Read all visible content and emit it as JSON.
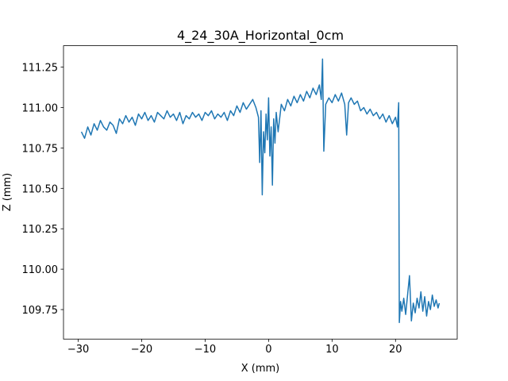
{
  "chart_data": {
    "type": "line",
    "title": "4_24_30A_Horizontal_0cm",
    "x_label": "X (mm)",
    "y_label": "Z (mm)",
    "x": [
      -29.5,
      -29,
      -28.5,
      -28,
      -27.5,
      -27,
      -26.5,
      -26,
      -25.5,
      -25,
      -24.5,
      -24,
      -23.5,
      -23,
      -22.5,
      -22,
      -21.5,
      -21,
      -20.5,
      -20,
      -19.5,
      -19,
      -18.5,
      -18,
      -17.5,
      -17,
      -16.5,
      -16,
      -15.5,
      -15,
      -14.5,
      -14,
      -13.5,
      -13,
      -12.5,
      -12,
      -11.5,
      -11,
      -10.5,
      -10,
      -9.5,
      -9,
      -8.5,
      -8,
      -7.5,
      -7,
      -6.5,
      -6,
      -5.5,
      -5,
      -4.5,
      -4,
      -3.5,
      -3,
      -2.5,
      -2,
      -1.6,
      -1.4,
      -1.2,
      -1,
      -0.8,
      -0.6,
      -0.4,
      -0.2,
      0,
      0.2,
      0.4,
      0.6,
      0.8,
      1,
      1.2,
      1.5,
      2,
      2.5,
      3,
      3.5,
      4,
      4.5,
      5,
      5.5,
      6,
      6.5,
      7,
      7.5,
      8,
      8.3,
      8.5,
      8.7,
      9,
      9.5,
      10,
      10.5,
      11,
      11.5,
      12,
      12.3,
      12.6,
      13,
      13.5,
      14,
      14.5,
      15,
      15.5,
      16,
      16.5,
      17,
      17.5,
      18,
      18.5,
      19,
      19.5,
      20,
      20.3,
      20.5,
      20.6,
      20.8,
      21,
      21.3,
      21.6,
      21.9,
      22.2,
      22.5,
      22.8,
      23.1,
      23.4,
      23.7,
      24,
      24.3,
      24.6,
      24.9,
      25.2,
      25.5,
      25.8,
      26.1,
      26.4,
      26.7,
      26.9
    ],
    "series": [
      {
        "color": "#1f77b4",
        "values": [
          110.85,
          110.81,
          110.88,
          110.83,
          110.9,
          110.86,
          110.92,
          110.88,
          110.86,
          110.91,
          110.89,
          110.84,
          110.93,
          110.9,
          110.95,
          110.91,
          110.94,
          110.89,
          110.96,
          110.93,
          110.97,
          110.92,
          110.95,
          110.91,
          110.97,
          110.95,
          110.93,
          110.98,
          110.94,
          110.96,
          110.92,
          110.97,
          110.9,
          110.95,
          110.93,
          110.97,
          110.94,
          110.96,
          110.92,
          110.97,
          110.95,
          110.98,
          110.93,
          110.96,
          110.94,
          110.97,
          110.92,
          110.98,
          110.95,
          111.01,
          110.97,
          111.03,
          110.99,
          111.02,
          111.05,
          111.0,
          110.94,
          110.66,
          110.98,
          110.46,
          110.85,
          110.72,
          110.96,
          110.8,
          111.06,
          110.7,
          110.88,
          110.52,
          110.93,
          110.78,
          110.97,
          110.85,
          111.02,
          110.98,
          111.05,
          111.01,
          111.07,
          111.03,
          111.08,
          111.04,
          111.1,
          111.06,
          111.12,
          111.08,
          111.14,
          111.05,
          111.3,
          110.73,
          111.02,
          111.06,
          111.03,
          111.08,
          111.04,
          111.09,
          111.02,
          110.83,
          111.03,
          111.06,
          111.02,
          111.04,
          110.98,
          111.0,
          110.96,
          110.99,
          110.95,
          110.97,
          110.93,
          110.96,
          110.91,
          110.95,
          110.9,
          110.94,
          110.88,
          111.03,
          109.67,
          109.8,
          109.74,
          109.82,
          109.72,
          109.84,
          109.96,
          109.68,
          109.79,
          109.73,
          109.82,
          109.76,
          109.86,
          109.74,
          109.83,
          109.71,
          109.8,
          109.75,
          109.84,
          109.77,
          109.81,
          109.76,
          109.79
        ]
      }
    ],
    "xlim": [
      -32.32,
      29.72
    ],
    "ylim": [
      109.5675,
      111.3825
    ],
    "xticks": [
      {
        "value": -30,
        "label": "−30"
      },
      {
        "value": -20,
        "label": "−20"
      },
      {
        "value": -10,
        "label": "−10"
      },
      0,
      10,
      20
    ],
    "yticks": [
      109.75,
      {
        "value": 110,
        "label": "110.00"
      },
      110.25,
      {
        "value": 110.5,
        "label": "110.50"
      },
      110.75,
      {
        "value": 111,
        "label": "111.00"
      },
      111.25
    ],
    "grid": false
  }
}
